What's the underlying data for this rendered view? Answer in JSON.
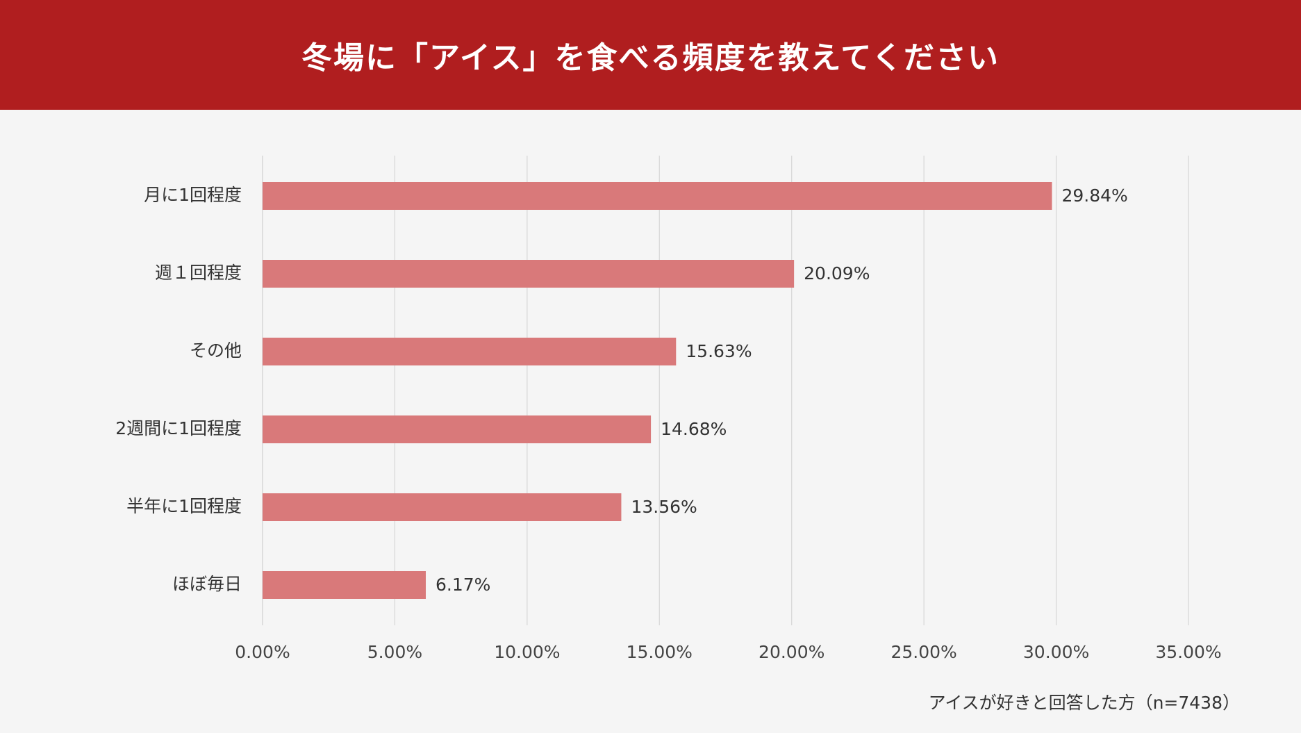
{
  "header": {
    "title": "冬場に「アイス」を食べる頻度を教えてください"
  },
  "footnote": "アイスが好きと回答した方（n=7438）",
  "colors": {
    "header_bg": "#b01e1f",
    "bar": "#d9797a",
    "grid": "#d6d6d6",
    "text": "#333333"
  },
  "chart_data": {
    "type": "bar",
    "orientation": "horizontal",
    "categories": [
      "月に1回程度",
      "週１回程度",
      "その他",
      "2週間に1回程度",
      "半年に1回程度",
      "ほぼ毎日"
    ],
    "values": [
      29.84,
      20.09,
      15.63,
      14.68,
      13.56,
      6.17
    ],
    "value_labels": [
      "29.84%",
      "20.09%",
      "15.63%",
      "14.68%",
      "13.56%",
      "6.17%"
    ],
    "x_ticks": [
      0,
      5,
      10,
      15,
      20,
      25,
      30,
      35
    ],
    "x_tick_labels": [
      "0.00%",
      "5.00%",
      "10.00%",
      "15.00%",
      "20.00%",
      "25.00%",
      "30.00%",
      "35.00%"
    ],
    "xlim": [
      0,
      35
    ],
    "grid": true,
    "legend": "none"
  }
}
